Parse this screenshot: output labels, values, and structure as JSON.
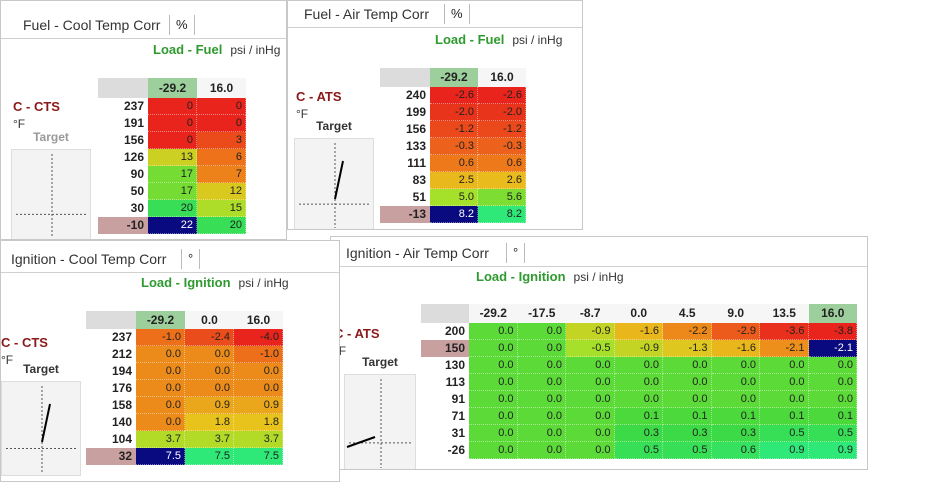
{
  "panels": [
    {
      "title": "Fuel - Cool Temp Corr",
      "unit_button": "%",
      "load_label": "Load - Fuel",
      "load_unit": "psi / inHg",
      "axis_label": "C - CTS",
      "axis_unit": "°F",
      "target_label": "Target",
      "columns": [
        "-29.2",
        "16.0"
      ],
      "selected_row": 7,
      "selected_column": 0,
      "rows": [
        {
          "label": "237",
          "cells": [
            "0",
            "0"
          ]
        },
        {
          "label": "191",
          "cells": [
            "0",
            "0"
          ]
        },
        {
          "label": "156",
          "cells": [
            "0",
            "3"
          ]
        },
        {
          "label": "126",
          "cells": [
            "13",
            "6"
          ]
        },
        {
          "label": "90",
          "cells": [
            "17",
            "7"
          ]
        },
        {
          "label": "50",
          "cells": [
            "17",
            "12"
          ]
        },
        {
          "label": "30",
          "cells": [
            "20",
            "15"
          ]
        },
        {
          "label": "-10",
          "cells": [
            "22",
            "20"
          ]
        }
      ]
    },
    {
      "title": "Fuel - Air Temp Corr",
      "unit_button": "%",
      "load_label": "Load - Fuel",
      "load_unit": "psi / inHg",
      "axis_label": "C - ATS",
      "axis_unit": "°F",
      "target_label": "Target",
      "columns": [
        "-29.2",
        "16.0"
      ],
      "selected_row": 7,
      "selected_column": 0,
      "rows": [
        {
          "label": "240",
          "cells": [
            "-2.6",
            "-2.6"
          ]
        },
        {
          "label": "199",
          "cells": [
            "-2.0",
            "-2.0"
          ]
        },
        {
          "label": "156",
          "cells": [
            "-1.2",
            "-1.2"
          ]
        },
        {
          "label": "133",
          "cells": [
            "-0.3",
            "-0.3"
          ]
        },
        {
          "label": "111",
          "cells": [
            "0.6",
            "0.6"
          ]
        },
        {
          "label": "83",
          "cells": [
            "2.5",
            "2.6"
          ]
        },
        {
          "label": "51",
          "cells": [
            "5.0",
            "5.6"
          ]
        },
        {
          "label": "-13",
          "cells": [
            "8.2",
            "8.2"
          ]
        }
      ]
    },
    {
      "title": "Ignition - Air Temp Corr",
      "unit_button": "°",
      "load_label": "Load - Ignition",
      "load_unit": "psi / inHg",
      "axis_label": "C - ATS",
      "axis_unit": "°F",
      "target_label": "Target",
      "columns": [
        "-29.2",
        "-17.5",
        "-8.7",
        "0.0",
        "4.5",
        "9.0",
        "13.5",
        "16.0"
      ],
      "selected_row": 1,
      "selected_column": 7,
      "rows": [
        {
          "label": "200",
          "cells": [
            "0.0",
            "0.0",
            "-0.9",
            "-1.6",
            "-2.2",
            "-2.9",
            "-3.6",
            "-3.8"
          ]
        },
        {
          "label": "150",
          "cells": [
            "0.0",
            "0.0",
            "-0.5",
            "-0.9",
            "-1.3",
            "-1.6",
            "-2.1",
            "-2.1"
          ]
        },
        {
          "label": "130",
          "cells": [
            "0.0",
            "0.0",
            "0.0",
            "0.0",
            "0.0",
            "0.0",
            "0.0",
            "0.0"
          ]
        },
        {
          "label": "113",
          "cells": [
            "0.0",
            "0.0",
            "0.0",
            "0.0",
            "0.0",
            "0.0",
            "0.0",
            "0.0"
          ]
        },
        {
          "label": "91",
          "cells": [
            "0.0",
            "0.0",
            "0.0",
            "0.0",
            "0.0",
            "0.0",
            "0.0",
            "0.0"
          ]
        },
        {
          "label": "71",
          "cells": [
            "0.0",
            "0.0",
            "0.0",
            "0.1",
            "0.1",
            "0.1",
            "0.1",
            "0.1"
          ]
        },
        {
          "label": "31",
          "cells": [
            "0.0",
            "0.0",
            "0.0",
            "0.3",
            "0.3",
            "0.3",
            "0.5",
            "0.5"
          ]
        },
        {
          "label": "-26",
          "cells": [
            "0.0",
            "0.0",
            "0.0",
            "0.5",
            "0.5",
            "0.6",
            "0.9",
            "0.9"
          ]
        }
      ]
    },
    {
      "title": "Ignition - Cool Temp Corr",
      "unit_button": "°",
      "load_label": "Load - Ignition",
      "load_unit": "psi / inHg",
      "axis_label": "C - CTS",
      "axis_unit": "°F",
      "target_label": "Target",
      "columns": [
        "-29.2",
        "0.0",
        "16.0"
      ],
      "selected_row": 7,
      "selected_column": 0,
      "rows": [
        {
          "label": "237",
          "cells": [
            "-1.0",
            "-2.4",
            "-4.0"
          ]
        },
        {
          "label": "212",
          "cells": [
            "0.0",
            "0.0",
            "-1.0"
          ]
        },
        {
          "label": "194",
          "cells": [
            "0.0",
            "0.0",
            "0.0"
          ]
        },
        {
          "label": "176",
          "cells": [
            "0.0",
            "0.0",
            "0.0"
          ]
        },
        {
          "label": "158",
          "cells": [
            "0.0",
            "0.9",
            "0.9"
          ]
        },
        {
          "label": "140",
          "cells": [
            "0.0",
            "1.8",
            "1.8"
          ]
        },
        {
          "label": "104",
          "cells": [
            "3.7",
            "3.7",
            "3.7"
          ]
        },
        {
          "label": "32",
          "cells": [
            "7.5",
            "7.5",
            "7.5"
          ]
        }
      ]
    }
  ]
}
